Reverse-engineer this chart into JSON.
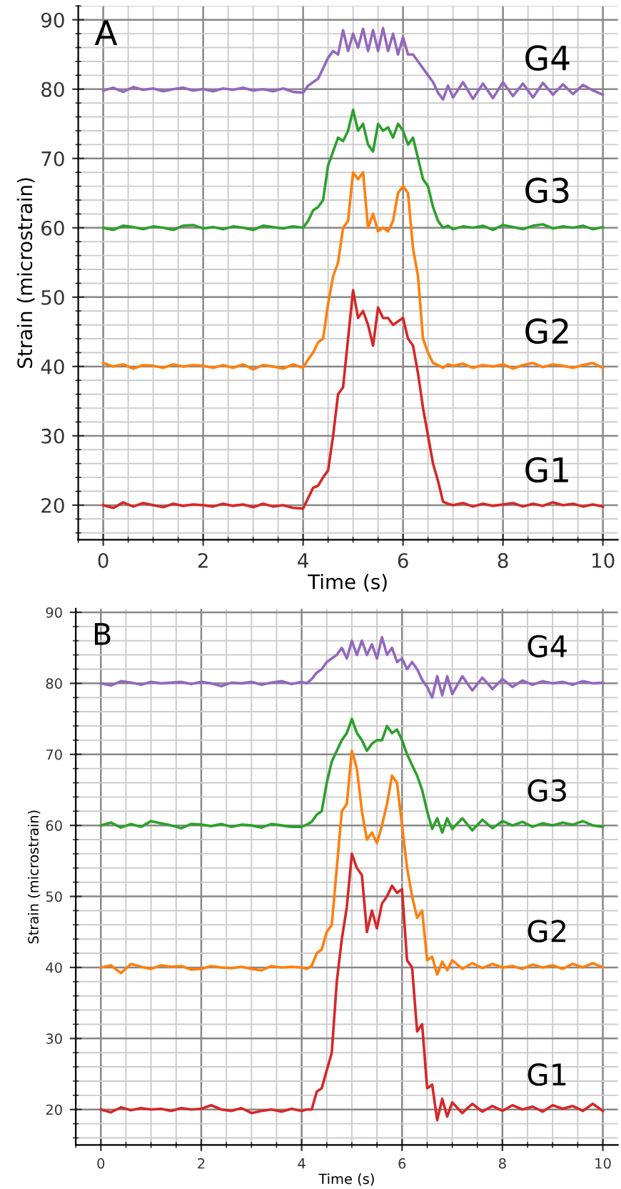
{
  "chart_data": [
    {
      "type": "line",
      "xlabel": "Time (s)",
      "ylabel": "Strain (microstrain)",
      "xlim": [
        -0.5,
        10.3
      ],
      "ylim": [
        15,
        92
      ],
      "xticks": [
        0,
        2,
        4,
        6,
        8,
        10
      ],
      "yticks": [
        20,
        30,
        40,
        50,
        60,
        70,
        80,
        90
      ],
      "grid": true,
      "legend": false,
      "marker": "none",
      "line_style": "solid",
      "x": [
        0,
        0.2,
        0.4,
        0.6,
        0.8,
        1.0,
        1.2,
        1.4,
        1.6,
        1.8,
        2.0,
        2.2,
        2.4,
        2.6,
        2.8,
        3.0,
        3.2,
        3.4,
        3.6,
        3.8,
        4.0,
        4.1,
        4.2,
        4.3,
        4.4,
        4.5,
        4.6,
        4.7,
        4.8,
        4.9,
        5.0,
        5.1,
        5.2,
        5.3,
        5.4,
        5.5,
        5.6,
        5.7,
        5.8,
        5.9,
        6.0,
        6.1,
        6.2,
        6.3,
        6.4,
        6.5,
        6.6,
        6.7,
        6.8,
        6.9,
        7.0,
        7.2,
        7.4,
        7.6,
        7.8,
        8.0,
        8.2,
        8.4,
        8.6,
        8.8,
        9.0,
        9.2,
        9.4,
        9.6,
        9.8,
        10.0
      ],
      "series": [
        {
          "name": "G1",
          "color": "#d62728",
          "values": [
            20,
            19.6,
            20.4,
            19.8,
            20.3,
            20,
            19.7,
            20.2,
            19.9,
            20.1,
            20,
            19.8,
            20.2,
            19.9,
            20.1,
            19.7,
            20.2,
            19.8,
            20,
            19.6,
            19.5,
            21,
            22.5,
            22.8,
            24,
            25,
            30,
            36,
            37,
            44,
            51,
            47,
            48,
            46,
            43,
            48.5,
            47,
            47,
            46,
            46.5,
            47,
            44,
            43,
            39,
            34,
            30,
            26,
            23.5,
            20.5,
            20.2,
            20,
            20.3,
            19.8,
            20.2,
            19.9,
            20.1,
            20.3,
            19.8,
            20.2,
            19.9,
            20.4,
            20,
            20.2,
            19.8,
            20.1,
            19.8
          ]
        },
        {
          "name": "G2",
          "color": "#ff7f0e",
          "values": [
            40.5,
            40,
            40.3,
            39.7,
            40.2,
            40.1,
            39.8,
            40.3,
            40,
            40.2,
            40.1,
            39.8,
            40.2,
            39.8,
            40.3,
            39.6,
            40.2,
            40,
            39.7,
            40.3,
            39.8,
            41,
            42,
            43.5,
            44,
            49,
            53,
            55,
            60,
            61,
            68,
            67,
            68,
            60,
            62,
            59.5,
            60,
            59.5,
            61,
            65,
            66,
            65,
            57,
            53,
            44,
            42,
            40.5,
            40.2,
            39.8,
            40.3,
            40.1,
            40.4,
            39.8,
            40.2,
            40,
            40.3,
            39.7,
            40.2,
            40.5,
            39.9,
            40.3,
            40.1,
            39.8,
            40.2,
            40.5,
            39.8
          ]
        },
        {
          "name": "G3",
          "color": "#2ca02c",
          "values": [
            60,
            59.7,
            60.3,
            60.1,
            59.8,
            60.2,
            60,
            59.7,
            60.3,
            60.4,
            59.9,
            60.1,
            59.8,
            60.2,
            60,
            59.7,
            60.3,
            60.1,
            59.9,
            60.2,
            60,
            61,
            62.5,
            63,
            64,
            69,
            71,
            73,
            72.5,
            74,
            77,
            74,
            75,
            72,
            71,
            75,
            74,
            74.5,
            73,
            75,
            74,
            72,
            73,
            70,
            67,
            66,
            63,
            61,
            60,
            60.3,
            59.8,
            60.2,
            60,
            60.3,
            59.7,
            60.4,
            60.1,
            59.8,
            60.3,
            60.5,
            59.9,
            60.2,
            60,
            60.3,
            59.8,
            60.1
          ]
        },
        {
          "name": "G4",
          "color": "#9467bd",
          "values": [
            79.8,
            80.2,
            79.6,
            80.3,
            79.9,
            80.1,
            79.7,
            80,
            80.2,
            79.8,
            80,
            79.7,
            80.1,
            79.9,
            80.2,
            79.8,
            80,
            79.7,
            80.1,
            79.6,
            79.5,
            80.5,
            81,
            81.5,
            83,
            84.5,
            85.5,
            85,
            88.5,
            85.5,
            88,
            86,
            88.7,
            85.5,
            88.5,
            85.5,
            88.8,
            85.5,
            88,
            85,
            87.5,
            85,
            85,
            84,
            83,
            82,
            81,
            79.5,
            78.5,
            80.5,
            78.8,
            81,
            78.6,
            80.8,
            78.7,
            81,
            79,
            80.8,
            78.8,
            80.9,
            79.2,
            80.7,
            79.3,
            80.6,
            79.8,
            79.2
          ]
        }
      ],
      "annotations": [
        "A"
      ]
    },
    {
      "type": "line",
      "xlabel": "Time (s)",
      "ylabel": "Strain (microstrain)",
      "xlim": [
        -0.5,
        10.3
      ],
      "ylim": [
        15,
        90.5
      ],
      "xticks": [
        0,
        2,
        4,
        6,
        8,
        10
      ],
      "yticks": [
        20,
        30,
        40,
        50,
        60,
        70,
        80,
        90
      ],
      "grid": true,
      "legend": false,
      "marker": "none",
      "line_style": "solid",
      "x": [
        0,
        0.2,
        0.4,
        0.6,
        0.8,
        1.0,
        1.2,
        1.4,
        1.6,
        1.8,
        2.0,
        2.2,
        2.4,
        2.6,
        2.8,
        3.0,
        3.2,
        3.4,
        3.6,
        3.8,
        4.0,
        4.1,
        4.2,
        4.3,
        4.4,
        4.5,
        4.6,
        4.7,
        4.8,
        4.9,
        5.0,
        5.1,
        5.2,
        5.3,
        5.4,
        5.5,
        5.6,
        5.7,
        5.8,
        5.9,
        6.0,
        6.1,
        6.2,
        6.3,
        6.4,
        6.5,
        6.6,
        6.7,
        6.8,
        6.9,
        7.0,
        7.2,
        7.4,
        7.6,
        7.8,
        8.0,
        8.2,
        8.4,
        8.6,
        8.8,
        9.0,
        9.2,
        9.4,
        9.6,
        9.8,
        10.0
      ],
      "series": [
        {
          "name": "G1",
          "color": "#d62728",
          "values": [
            20,
            19.6,
            20.3,
            19.9,
            20.2,
            20,
            20.1,
            19.8,
            20.2,
            20,
            20.1,
            20.6,
            20,
            19.8,
            20.2,
            19.5,
            19.8,
            20,
            19.7,
            20.1,
            19.8,
            20,
            20,
            22.5,
            23,
            25.5,
            28,
            38,
            44,
            48.5,
            56,
            54,
            53,
            45,
            48,
            45.5,
            49,
            50,
            51.5,
            50.5,
            51,
            41,
            40,
            31,
            32,
            23,
            23.5,
            18.5,
            21.5,
            19,
            21,
            19.5,
            20.8,
            19.7,
            20.5,
            19.8,
            20.6,
            20,
            20.4,
            19.7,
            20.6,
            20.1,
            20.5,
            19.8,
            20.8,
            19.8
          ]
        },
        {
          "name": "G2",
          "color": "#ff7f0e",
          "values": [
            40,
            40.3,
            39.2,
            40.5,
            40.1,
            39.8,
            40.3,
            40.1,
            40.2,
            39.7,
            39.8,
            40.2,
            40,
            39.9,
            40.1,
            39.8,
            39.6,
            40.2,
            40,
            40.1,
            40,
            39.8,
            40.2,
            42,
            42.5,
            45,
            46,
            54,
            62,
            63,
            70.5,
            68,
            62,
            58,
            59,
            57.5,
            60,
            63,
            67,
            66,
            60,
            54,
            50,
            47,
            48,
            41,
            41.5,
            39,
            40.8,
            39.6,
            41,
            39.8,
            40.6,
            39.9,
            40.5,
            40,
            40.2,
            39.8,
            40.4,
            40,
            40.3,
            39.8,
            40.5,
            40,
            40.6,
            40
          ]
        },
        {
          "name": "G3",
          "color": "#2ca02c",
          "values": [
            60,
            60.4,
            59.7,
            60.2,
            59.8,
            60.6,
            60.3,
            60,
            59.6,
            60.2,
            60.1,
            59.9,
            60.2,
            59.8,
            60.1,
            60,
            59.7,
            60.2,
            60,
            59.8,
            59.8,
            60.1,
            60.5,
            61.5,
            62,
            66,
            69,
            70.5,
            72,
            73,
            75,
            73,
            72,
            70.5,
            71.5,
            72,
            72,
            74,
            73,
            73.5,
            72,
            70,
            68.5,
            67,
            65,
            62,
            59.5,
            61,
            59,
            61,
            59.5,
            61,
            59.3,
            60.8,
            59.6,
            60.6,
            60,
            60.5,
            59.8,
            60.3,
            60,
            60.4,
            60.1,
            60.6,
            60,
            59.8
          ]
        },
        {
          "name": "G4",
          "color": "#9467bd",
          "values": [
            80,
            79.7,
            80.3,
            80.1,
            79.8,
            80.2,
            80,
            80.1,
            80.2,
            79.9,
            80.2,
            80,
            79.6,
            80.1,
            80,
            80.2,
            79.8,
            80.1,
            80.3,
            79.9,
            80.2,
            80,
            80.6,
            81.5,
            82,
            83,
            83.5,
            84,
            85,
            83.5,
            86,
            84,
            86,
            84,
            85.5,
            83.5,
            86.5,
            84,
            85,
            83,
            83.5,
            82,
            83,
            82,
            80.5,
            79.5,
            78,
            81,
            78.3,
            81,
            78.5,
            81,
            79,
            80.8,
            79.2,
            80.6,
            79.5,
            80.4,
            79.8,
            80.3,
            80,
            80.2,
            79.8,
            80.3,
            80,
            80.1
          ]
        }
      ],
      "annotations": [
        "B"
      ]
    }
  ]
}
